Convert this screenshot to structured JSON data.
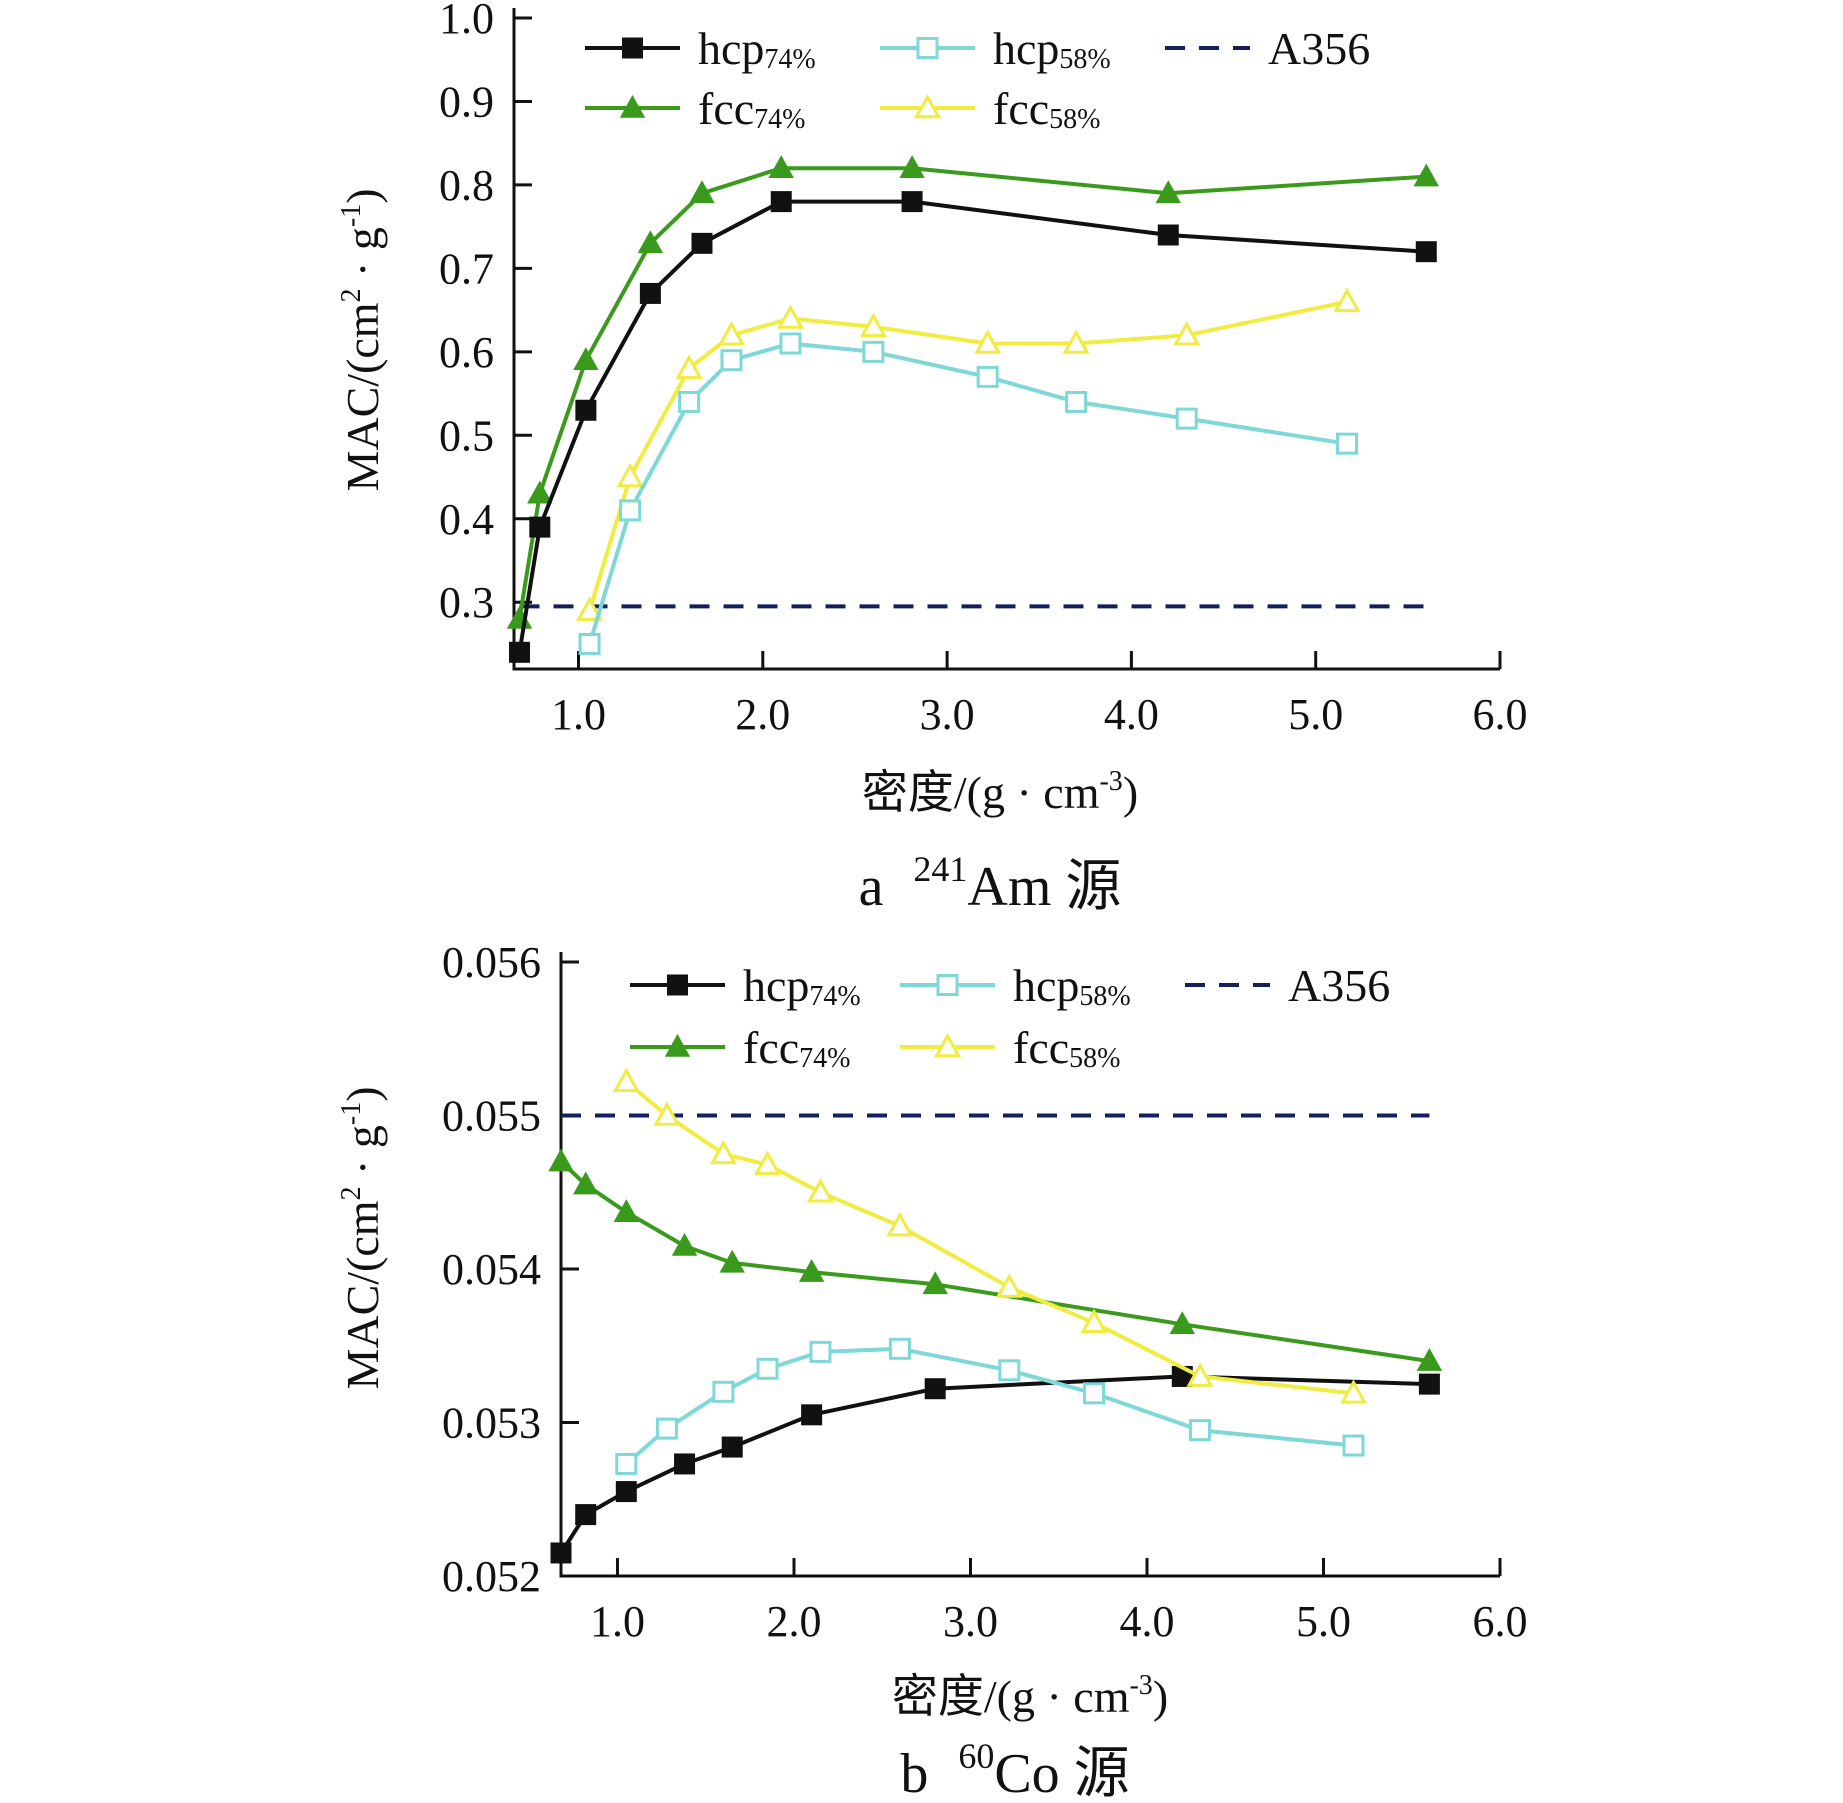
{
  "chart_data": [
    {
      "type": "line",
      "caption": {
        "prefix": "a",
        "sup": "241",
        "name": "Am 源"
      },
      "xlabel": {
        "text": "密度/(g · cm",
        "sup": "-3",
        "tail": ")"
      },
      "ylabel": {
        "text": "MAC/(cm",
        "sup1": "2",
        "mid": " · g",
        "sup2": "-1",
        "tail": ")"
      },
      "xlim": [
        0.65,
        6.0
      ],
      "ylim": [
        0.22,
        1.0
      ],
      "xticks": [
        1.0,
        2.0,
        3.0,
        4.0,
        5.0,
        6.0
      ],
      "xtick_labels": [
        "1.0",
        "2.0",
        "3.0",
        "4.0",
        "5.0",
        "6.0"
      ],
      "yticks": [
        0.3,
        0.4,
        0.5,
        0.6,
        0.7,
        0.8,
        0.9,
        1.0
      ],
      "ytick_labels": [
        "0.3",
        "0.4",
        "0.5",
        "0.6",
        "0.7",
        "0.8",
        "0.9",
        "1.0"
      ],
      "legend_position": "top",
      "series": [
        {
          "name": "hcp",
          "sub": "74%",
          "color": "#111111",
          "marker": "square-filled",
          "x": [
            0.68,
            0.79,
            1.04,
            1.39,
            1.67,
            2.1,
            2.81,
            4.2,
            5.6
          ],
          "y": [
            0.24,
            0.39,
            0.53,
            0.67,
            0.73,
            0.78,
            0.78,
            0.74,
            0.72
          ]
        },
        {
          "name": "hcp",
          "sub": "58%",
          "color": "#7fd8d8",
          "marker": "square-open",
          "x": [
            1.06,
            1.28,
            1.6,
            1.83,
            2.15,
            2.6,
            3.22,
            3.7,
            4.3,
            5.17
          ],
          "y": [
            0.25,
            0.41,
            0.54,
            0.59,
            0.61,
            0.6,
            0.57,
            0.54,
            0.52,
            0.49
          ]
        },
        {
          "name": "A356",
          "sub": "",
          "color": "#141f5c",
          "marker": "dashed",
          "x": [
            0.68,
            5.6
          ],
          "y": [
            0.295,
            0.295
          ]
        },
        {
          "name": "fcc",
          "sub": "74%",
          "color": "#3a9a1c",
          "marker": "triangle-filled",
          "x": [
            0.68,
            0.79,
            1.04,
            1.39,
            1.67,
            2.1,
            2.81,
            4.2,
            5.6
          ],
          "y": [
            0.28,
            0.43,
            0.59,
            0.73,
            0.79,
            0.82,
            0.82,
            0.79,
            0.81
          ]
        },
        {
          "name": "fcc",
          "sub": "58%",
          "color": "#f0ec40",
          "marker": "triangle-open",
          "x": [
            1.06,
            1.28,
            1.6,
            1.83,
            2.15,
            2.6,
            3.22,
            3.7,
            4.3,
            5.17
          ],
          "y": [
            0.29,
            0.45,
            0.58,
            0.62,
            0.64,
            0.63,
            0.61,
            0.61,
            0.62,
            0.66
          ]
        }
      ]
    },
    {
      "type": "line",
      "caption": {
        "prefix": "b",
        "sup": "60",
        "name": "Co 源"
      },
      "xlabel": {
        "text": "密度/(g · cm",
        "sup": "-3",
        "tail": ")"
      },
      "ylabel": {
        "text": "MAC/(cm",
        "sup1": "2",
        "mid": " · g",
        "sup2": "-1",
        "tail": ")"
      },
      "xlim": [
        0.68,
        6.0
      ],
      "ylim": [
        0.052,
        0.056
      ],
      "xticks": [
        1.0,
        2.0,
        3.0,
        4.0,
        5.0,
        6.0
      ],
      "xtick_labels": [
        "1.0",
        "2.0",
        "3.0",
        "4.0",
        "5.0",
        "6.0"
      ],
      "yticks": [
        0.052,
        0.053,
        0.054,
        0.055,
        0.056
      ],
      "ytick_labels": [
        "0.052",
        "0.053",
        "0.054",
        "0.055",
        "0.056"
      ],
      "legend_position": "top",
      "series": [
        {
          "name": "hcp",
          "sub": "74%",
          "color": "#111111",
          "marker": "square-filled",
          "x": [
            0.68,
            0.82,
            1.05,
            1.38,
            1.65,
            2.1,
            2.8,
            4.2,
            5.6
          ],
          "y": [
            0.05215,
            0.0524,
            0.05255,
            0.05273,
            0.05284,
            0.05305,
            0.05322,
            0.0533,
            0.05325
          ]
        },
        {
          "name": "hcp",
          "sub": "58%",
          "color": "#7fd8d8",
          "marker": "square-open",
          "x": [
            1.05,
            1.28,
            1.6,
            1.85,
            2.15,
            2.6,
            3.22,
            3.7,
            4.3,
            5.17
          ],
          "y": [
            0.05273,
            0.05296,
            0.0532,
            0.05335,
            0.05346,
            0.05348,
            0.05334,
            0.05319,
            0.05295,
            0.05285
          ]
        },
        {
          "name": "A356",
          "sub": "",
          "color": "#141f5c",
          "marker": "dashed",
          "x": [
            0.68,
            5.6
          ],
          "y": [
            0.055,
            0.055
          ]
        },
        {
          "name": "fcc",
          "sub": "74%",
          "color": "#3a9a1c",
          "marker": "triangle-filled",
          "x": [
            0.68,
            0.82,
            1.05,
            1.38,
            1.65,
            2.1,
            2.8,
            4.2,
            5.6
          ],
          "y": [
            0.0547,
            0.05455,
            0.05437,
            0.05415,
            0.05404,
            0.05398,
            0.0539,
            0.05364,
            0.0534
          ]
        },
        {
          "name": "fcc",
          "sub": "58%",
          "color": "#f0ec40",
          "marker": "triangle-open",
          "x": [
            1.05,
            1.28,
            1.6,
            1.85,
            2.15,
            2.6,
            3.22,
            3.7,
            4.3,
            5.17
          ],
          "y": [
            0.05522,
            0.055,
            0.05475,
            0.05468,
            0.0545,
            0.05428,
            0.05388,
            0.05365,
            0.0533,
            0.05319
          ]
        }
      ]
    }
  ]
}
